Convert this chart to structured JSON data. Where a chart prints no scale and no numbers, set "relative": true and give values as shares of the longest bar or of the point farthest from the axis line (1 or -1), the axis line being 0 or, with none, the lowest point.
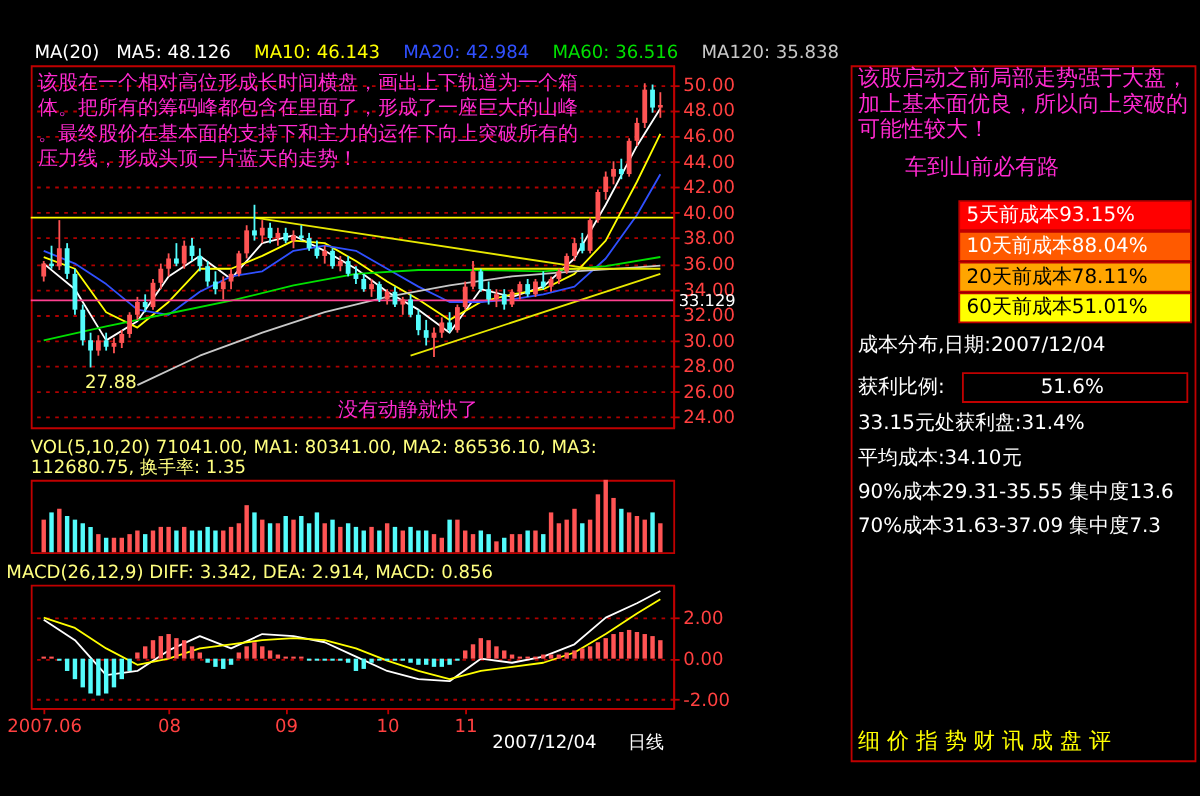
{
  "chart_data": [
    {
      "type": "candlestick",
      "title": "MA(20)",
      "legend": "top",
      "tick_labels": "y",
      "grid": "y",
      "categories": [
        null,
        null,
        null,
        null,
        null,
        null,
        null,
        null,
        null,
        null,
        null,
        null,
        null,
        null,
        null,
        null,
        null,
        null,
        null,
        null,
        null,
        null,
        null,
        null,
        null,
        null,
        null,
        null,
        null,
        null,
        null,
        null,
        null,
        null,
        null,
        null,
        null,
        null,
        null,
        null,
        null,
        null,
        null,
        null,
        null,
        null,
        null,
        null,
        null,
        null,
        null,
        null,
        null,
        null,
        null,
        null,
        null,
        null,
        null,
        null,
        null,
        null,
        null,
        null,
        null,
        null,
        null,
        null,
        null,
        null,
        null,
        null,
        null,
        null,
        null,
        null,
        null,
        null,
        null,
        null
      ],
      "ohlc": [
        [
          35.0,
          36.2,
          34.6,
          36.0
        ],
        [
          36.0,
          37.4,
          35.6,
          35.8
        ],
        [
          35.8,
          39.4,
          35.5,
          37.2
        ],
        [
          37.2,
          37.6,
          34.8,
          35.2
        ],
        [
          35.2,
          35.6,
          32.0,
          32.4
        ],
        [
          32.4,
          32.8,
          29.6,
          30.0
        ],
        [
          30.0,
          30.6,
          27.88,
          29.2
        ],
        [
          29.2,
          30.4,
          28.8,
          30.0
        ],
        [
          30.0,
          30.6,
          29.2,
          29.5
        ],
        [
          29.5,
          30.2,
          29.0,
          29.8
        ],
        [
          29.8,
          30.8,
          29.4,
          30.5
        ],
        [
          30.5,
          32.2,
          30.2,
          32.0
        ],
        [
          32.0,
          33.4,
          31.6,
          33.0
        ],
        [
          33.0,
          33.6,
          32.2,
          32.6
        ],
        [
          32.6,
          34.8,
          32.4,
          34.5
        ],
        [
          34.5,
          36.0,
          34.0,
          35.6
        ],
        [
          35.6,
          36.8,
          35.0,
          36.4
        ],
        [
          36.4,
          37.6,
          35.8,
          36.0
        ],
        [
          36.0,
          37.8,
          35.6,
          37.4
        ],
        [
          37.4,
          38.0,
          36.2,
          36.6
        ],
        [
          36.6,
          37.2,
          35.4,
          35.8
        ],
        [
          35.8,
          36.2,
          34.2,
          34.6
        ],
        [
          34.6,
          35.4,
          33.6,
          34.0
        ],
        [
          34.0,
          35.0,
          33.2,
          34.6
        ],
        [
          34.6,
          35.6,
          34.0,
          35.2
        ],
        [
          35.2,
          37.0,
          35.0,
          36.8
        ],
        [
          36.8,
          39.0,
          36.4,
          38.6
        ],
        [
          38.6,
          40.6,
          37.8,
          38.2
        ],
        [
          38.2,
          39.4,
          37.6,
          38.8
        ],
        [
          38.8,
          39.2,
          37.6,
          38.0
        ],
        [
          38.0,
          38.8,
          37.4,
          38.4
        ],
        [
          38.4,
          38.8,
          37.6,
          37.8
        ],
        [
          37.8,
          38.6,
          37.2,
          38.2
        ],
        [
          38.2,
          39.0,
          37.8,
          38.0
        ],
        [
          38.0,
          38.4,
          37.0,
          37.2
        ],
        [
          37.2,
          37.8,
          36.4,
          36.6
        ],
        [
          36.6,
          37.4,
          36.0,
          37.0
        ],
        [
          37.0,
          37.2,
          35.6,
          35.8
        ],
        [
          35.8,
          36.6,
          35.4,
          36.2
        ],
        [
          36.2,
          36.6,
          35.0,
          35.2
        ],
        [
          35.2,
          35.8,
          34.4,
          34.8
        ],
        [
          34.8,
          35.2,
          33.8,
          34.0
        ],
        [
          34.0,
          34.8,
          33.4,
          34.4
        ],
        [
          34.4,
          34.6,
          33.0,
          33.2
        ],
        [
          33.2,
          34.0,
          32.8,
          33.8
        ],
        [
          33.8,
          34.2,
          32.6,
          32.8
        ],
        [
          32.8,
          33.4,
          32.0,
          33.2
        ],
        [
          33.2,
          33.6,
          31.8,
          32.0
        ],
        [
          32.0,
          32.4,
          30.4,
          30.8
        ],
        [
          30.8,
          31.6,
          29.6,
          30.2
        ],
        [
          30.2,
          31.0,
          28.7,
          30.6
        ],
        [
          30.6,
          31.8,
          30.2,
          31.4
        ],
        [
          31.4,
          32.2,
          30.6,
          30.8
        ],
        [
          30.8,
          32.8,
          30.6,
          32.6
        ],
        [
          32.6,
          34.6,
          32.4,
          34.2
        ],
        [
          34.2,
          36.2,
          34.0,
          35.4
        ],
        [
          35.4,
          35.6,
          33.8,
          34.0
        ],
        [
          34.0,
          34.6,
          32.8,
          33.2
        ],
        [
          33.2,
          34.0,
          32.6,
          33.6
        ],
        [
          33.6,
          34.0,
          32.4,
          32.8
        ],
        [
          32.8,
          34.0,
          32.6,
          33.8
        ],
        [
          33.8,
          34.6,
          33.2,
          34.4
        ],
        [
          34.4,
          34.8,
          33.4,
          33.6
        ],
        [
          33.6,
          34.8,
          33.4,
          34.6
        ],
        [
          34.6,
          35.4,
          34.0,
          34.2
        ],
        [
          34.2,
          35.0,
          33.8,
          34.8
        ],
        [
          34.8,
          35.6,
          34.4,
          35.4
        ],
        [
          35.4,
          36.8,
          35.2,
          36.6
        ],
        [
          36.6,
          38.0,
          36.2,
          37.6
        ],
        [
          37.6,
          38.4,
          36.8,
          37.0
        ],
        [
          37.0,
          39.6,
          36.8,
          39.4
        ],
        [
          39.4,
          41.8,
          39.2,
          41.6
        ],
        [
          41.6,
          43.2,
          41.0,
          42.8
        ],
        [
          42.8,
          44.0,
          42.2,
          43.4
        ],
        [
          43.4,
          44.2,
          42.6,
          43.0
        ],
        [
          43.0,
          45.8,
          42.8,
          45.6
        ],
        [
          45.6,
          47.4,
          45.2,
          47.0
        ],
        [
          47.0,
          50.1,
          46.6,
          49.6
        ],
        [
          49.6,
          50.0,
          47.8,
          48.2
        ],
        [
          48.2,
          49.4,
          47.4,
          48.4
        ]
      ],
      "colors": [
        "#ff5454",
        "#54fcfc",
        "#ff5454",
        "#54fcfc",
        "#54fcfc",
        "#54fcfc",
        "#54fcfc",
        "#ff5454",
        "#54fcfc",
        "#ff5454",
        "#ff5454",
        "#ff5454",
        "#ff5454",
        "#54fcfc",
        "#ff5454",
        "#ff5454",
        "#ff5454",
        "#54fcfc",
        "#ff5454",
        "#54fcfc",
        "#54fcfc",
        "#54fcfc",
        "#54fcfc",
        "#ff5454",
        "#ff5454",
        "#ff5454",
        "#ff5454",
        "#54fcfc",
        "#ff5454",
        "#54fcfc",
        "#ff5454",
        "#54fcfc",
        "#ff5454",
        "#54fcfc",
        "#54fcfc",
        "#54fcfc",
        "#ff5454",
        "#54fcfc",
        "#ff5454",
        "#54fcfc",
        "#54fcfc",
        "#54fcfc",
        "#ff5454",
        "#54fcfc",
        "#ff5454",
        "#54fcfc",
        "#ff5454",
        "#54fcfc",
        "#54fcfc",
        "#54fcfc",
        "#ff5454",
        "#ff5454",
        "#54fcfc",
        "#ff5454",
        "#ff5454",
        "#ff5454",
        "#54fcfc",
        "#54fcfc",
        "#ff5454",
        "#54fcfc",
        "#ff5454",
        "#ff5454",
        "#54fcfc",
        "#ff5454",
        "#54fcfc",
        "#ff5454",
        "#ff5454",
        "#ff5454",
        "#ff5454",
        "#54fcfc",
        "#ff5454",
        "#ff5454",
        "#ff5454",
        "#ff5454",
        "#54fcfc",
        "#ff5454",
        "#ff5454",
        "#ff5454",
        "#54fcfc",
        "#ff5454"
      ],
      "ylim": [
        23.2,
        51.5
      ],
      "yticks": [
        {
          "value": 24,
          "label": "24.00"
        },
        {
          "value": 26,
          "label": "26.00"
        },
        {
          "value": 28,
          "label": "28.00"
        },
        {
          "value": 30,
          "label": "30.00"
        },
        {
          "value": 32,
          "label": "32.00"
        },
        {
          "value": 34,
          "label": "34.00"
        },
        {
          "value": 36,
          "label": "36.00"
        },
        {
          "value": 38,
          "label": "38.00"
        },
        {
          "value": 40,
          "label": "40.00"
        },
        {
          "value": 42,
          "label": "42.00"
        },
        {
          "value": 44,
          "label": "44.00"
        },
        {
          "value": 46,
          "label": "46.00"
        },
        {
          "value": 48,
          "label": "48.00"
        },
        {
          "value": 50,
          "label": "50.00"
        }
      ],
      "series": [
        {
          "name": "MA5: 48.126",
          "type": "line",
          "color": "#ffffff",
          "values": [
            36,
            null,
            null,
            null,
            34,
            null,
            null,
            null,
            30,
            null,
            null,
            null,
            31.5,
            null,
            null,
            null,
            35,
            null,
            null,
            null,
            36.6,
            null,
            null,
            null,
            34.8,
            null,
            null,
            null,
            37.6,
            null,
            null,
            null,
            38.2,
            null,
            null,
            null,
            37,
            null,
            null,
            null,
            35.6,
            null,
            null,
            null,
            33.8,
            null,
            null,
            null,
            32.4,
            null,
            null,
            null,
            30.6,
            null,
            null,
            null,
            34,
            null,
            null,
            null,
            33.4,
            null,
            null,
            null,
            34.2,
            null,
            null,
            null,
            36.4,
            null,
            null,
            null,
            40.6,
            null,
            null,
            null,
            45.2,
            null,
            null,
            48.126
          ]
        },
        {
          "name": "MA10: 46.143",
          "type": "line",
          "color": "#ffff00",
          "values": [
            36.5,
            null,
            null,
            null,
            35.6,
            null,
            null,
            null,
            32.2,
            null,
            null,
            null,
            31,
            null,
            null,
            null,
            33,
            null,
            null,
            null,
            35.6,
            null,
            null,
            null,
            35.6,
            null,
            null,
            null,
            36.6,
            null,
            null,
            null,
            37.8,
            null,
            null,
            null,
            37.6,
            null,
            null,
            null,
            36.2,
            null,
            null,
            null,
            34.6,
            null,
            null,
            null,
            33.2,
            null,
            null,
            null,
            31.6,
            null,
            null,
            null,
            33,
            null,
            null,
            null,
            33.6,
            null,
            null,
            null,
            34,
            null,
            null,
            null,
            35.2,
            null,
            null,
            null,
            37.8,
            null,
            null,
            null,
            42.4,
            null,
            null,
            46.143
          ]
        },
        {
          "name": "MA20: 42.984",
          "type": "line",
          "color": "#3050ff",
          "values": [
            37,
            null,
            null,
            null,
            36,
            null,
            null,
            null,
            34.4,
            null,
            null,
            null,
            32.4,
            null,
            null,
            null,
            32,
            null,
            null,
            null,
            33.8,
            null,
            null,
            null,
            35,
            null,
            null,
            null,
            35.4,
            null,
            null,
            null,
            37,
            null,
            null,
            null,
            37.4,
            null,
            null,
            null,
            37,
            null,
            null,
            null,
            35.6,
            null,
            null,
            null,
            34.2,
            null,
            null,
            null,
            33,
            null,
            null,
            null,
            33,
            null,
            null,
            null,
            33.2,
            null,
            null,
            null,
            33.6,
            null,
            null,
            null,
            34.2,
            null,
            null,
            null,
            36.4,
            null,
            null,
            null,
            39.8,
            null,
            null,
            42.984
          ]
        },
        {
          "name": "MA60: 36.516",
          "type": "line",
          "color": "#00e000",
          "values": [
            30.0,
            null,
            null,
            null,
            null,
            null,
            null,
            null,
            31.1,
            null,
            null,
            null,
            null,
            null,
            null,
            null,
            32.1,
            null,
            null,
            null,
            null,
            null,
            null,
            null,
            33.1,
            null,
            null,
            null,
            null,
            null,
            null,
            null,
            34.3,
            null,
            null,
            null,
            null,
            null,
            null,
            null,
            35.2,
            null,
            null,
            null,
            null,
            null,
            null,
            null,
            35.5,
            null,
            null,
            null,
            null,
            null,
            null,
            null,
            35.5,
            null,
            null,
            null,
            null,
            null,
            null,
            null,
            35.4,
            null,
            null,
            null,
            null,
            null,
            null,
            null,
            35.8,
            null,
            null,
            null,
            null,
            null,
            null,
            36.516
          ]
        },
        {
          "name": "MA120: 35.838",
          "type": "line",
          "color": "#c8c8c8",
          "values": [
            null,
            null,
            null,
            null,
            null,
            null,
            null,
            null,
            null,
            null,
            null,
            null,
            26.5,
            null,
            null,
            null,
            null,
            null,
            null,
            null,
            28.8,
            null,
            null,
            null,
            null,
            null,
            null,
            null,
            30.6,
            null,
            null,
            null,
            null,
            null,
            null,
            null,
            32.2,
            null,
            null,
            null,
            null,
            null,
            null,
            null,
            33.4,
            null,
            null,
            null,
            null,
            null,
            null,
            null,
            34.3,
            null,
            null,
            null,
            null,
            null,
            null,
            null,
            35.0,
            null,
            null,
            null,
            null,
            null,
            null,
            null,
            35.4,
            null,
            null,
            null,
            null,
            null,
            null,
            null,
            35.7,
            null,
            null,
            35.838
          ]
        },
        {
          "type": "line",
          "color": "#e8e800",
          "values": [
            null,
            null,
            null,
            null,
            null,
            null,
            null,
            null,
            null,
            null,
            null,
            null,
            null,
            null,
            null,
            null,
            null,
            null,
            null,
            null,
            null,
            null,
            null,
            null,
            null,
            null,
            null,
            39.6,
            null,
            null,
            null,
            null,
            null,
            null,
            null,
            null,
            null,
            null,
            null,
            null,
            null,
            null,
            null,
            null,
            null,
            null,
            null,
            null,
            null,
            null,
            null,
            null,
            null,
            null,
            null,
            null,
            null,
            null,
            null,
            null,
            null,
            null,
            null,
            null,
            null,
            null,
            null,
            null,
            null,
            null,
            35.6,
            null,
            null,
            null,
            null,
            null,
            null,
            null,
            null,
            null
          ]
        },
        {
          "type": "line",
          "color": "#e8e800",
          "values": [
            null,
            null,
            null,
            null,
            null,
            null,
            null,
            null,
            null,
            null,
            null,
            null,
            null,
            null,
            null,
            null,
            null,
            null,
            null,
            null,
            null,
            null,
            null,
            null,
            null,
            null,
            null,
            null,
            null,
            null,
            null,
            null,
            null,
            null,
            null,
            null,
            null,
            null,
            null,
            null,
            null,
            null,
            null,
            null,
            null,
            null,
            null,
            28.8,
            null,
            null,
            null,
            null,
            null,
            null,
            null,
            null,
            null,
            null,
            null,
            null,
            null,
            null,
            null,
            null,
            null,
            null,
            null,
            null,
            null,
            null,
            null,
            null,
            null,
            null,
            null,
            null,
            null,
            null,
            null,
            35.2
          ]
        },
        {
          "type": "line",
          "color": "#e8e800",
          "values": [
            null,
            null,
            null,
            null,
            null,
            null,
            null,
            null,
            null,
            null,
            null,
            null,
            null,
            null,
            null,
            null,
            null,
            null,
            null,
            null,
            null,
            null,
            null,
            null,
            null,
            null,
            null,
            null,
            null,
            null,
            null,
            null,
            null,
            null,
            null,
            null,
            null,
            null,
            null,
            null,
            null,
            null,
            null,
            null,
            null,
            null,
            null,
            null,
            null,
            null,
            null,
            null,
            null,
            null,
            null,
            35.6,
            null,
            null,
            null,
            null,
            null,
            null,
            null,
            null,
            null,
            null,
            null,
            null,
            null,
            null,
            null,
            null,
            null,
            null,
            null,
            null,
            null,
            null,
            null,
            35.6
          ]
        }
      ],
      "ref_lines": [
        {
          "axis": "y",
          "value": 39.6,
          "color": "#ffff00"
        },
        {
          "axis": "y",
          "value": 33.129,
          "label": "33.129",
          "color": "#ff4090"
        }
      ],
      "annotations": [
        "该股在一个相对高位形成长时间横盘，画出上下轨道为一个箱体。把所有的筹码峰都包含在里面了，形成了一座巨大的山峰。最终股价在基本面的支持下和主力的运作下向上突破所有的压力线，形成头顶一片蓝天的走势！",
        "没有动静就快了",
        "27.88"
      ]
    },
    {
      "type": "bar",
      "relative": true,
      "title": "VOL(5,10,20) 71041.00, MA1: 80341.00, MA2: 86536.10, MA3: 112680.75, 换手率: 1.35",
      "categories": [
        null,
        null,
        null,
        null,
        null,
        null,
        null,
        null,
        null,
        null,
        null,
        null,
        null,
        null,
        null,
        null,
        null,
        null,
        null,
        null,
        null,
        null,
        null,
        null,
        null,
        null,
        null,
        null,
        null,
        null,
        null,
        null,
        null,
        null,
        null,
        null,
        null,
        null,
        null,
        null,
        null,
        null,
        null,
        null,
        null,
        null,
        null,
        null,
        null,
        null,
        null,
        null,
        null,
        null,
        null,
        null,
        null,
        null,
        null,
        null,
        null,
        null,
        null,
        null,
        null,
        null,
        null,
        null,
        null,
        null,
        null,
        null,
        null,
        null,
        null,
        null,
        null,
        null,
        null,
        null
      ],
      "values": [
        0.45,
        0.55,
        0.6,
        0.5,
        0.45,
        0.4,
        0.35,
        0.25,
        0.2,
        0.2,
        0.2,
        0.25,
        0.3,
        0.25,
        0.3,
        0.35,
        0.35,
        0.3,
        0.35,
        0.3,
        0.3,
        0.35,
        0.3,
        0.3,
        0.35,
        0.4,
        0.65,
        0.55,
        0.45,
        0.4,
        0.4,
        0.5,
        0.45,
        0.5,
        0.4,
        0.55,
        0.4,
        0.45,
        0.35,
        0.4,
        0.35,
        0.3,
        0.35,
        0.3,
        0.4,
        0.35,
        0.3,
        0.35,
        0.3,
        0.3,
        0.25,
        0.2,
        0.45,
        0.45,
        0.3,
        0.25,
        0.3,
        0.25,
        0.15,
        0.2,
        0.25,
        0.25,
        0.3,
        0.3,
        0.25,
        0.55,
        0.4,
        0.45,
        0.6,
        0.4,
        0.45,
        0.8,
        1.0,
        0.75,
        0.6,
        0.55,
        0.5,
        0.45,
        0.55,
        0.4
      ],
      "colors": [
        "#ff5454",
        "#54fcfc",
        "#ff5454",
        "#54fcfc",
        "#54fcfc",
        "#54fcfc",
        "#54fcfc",
        "#ff5454",
        "#54fcfc",
        "#ff5454",
        "#ff5454",
        "#ff5454",
        "#ff5454",
        "#54fcfc",
        "#ff5454",
        "#ff5454",
        "#ff5454",
        "#54fcfc",
        "#ff5454",
        "#54fcfc",
        "#54fcfc",
        "#54fcfc",
        "#54fcfc",
        "#ff5454",
        "#ff5454",
        "#ff5454",
        "#ff5454",
        "#54fcfc",
        "#ff5454",
        "#54fcfc",
        "#ff5454",
        "#54fcfc",
        "#ff5454",
        "#54fcfc",
        "#54fcfc",
        "#54fcfc",
        "#ff5454",
        "#54fcfc",
        "#ff5454",
        "#54fcfc",
        "#54fcfc",
        "#54fcfc",
        "#ff5454",
        "#54fcfc",
        "#ff5454",
        "#54fcfc",
        "#ff5454",
        "#54fcfc",
        "#54fcfc",
        "#54fcfc",
        "#ff5454",
        "#ff5454",
        "#54fcfc",
        "#ff5454",
        "#ff5454",
        "#ff5454",
        "#54fcfc",
        "#54fcfc",
        "#ff5454",
        "#54fcfc",
        "#ff5454",
        "#ff5454",
        "#54fcfc",
        "#ff5454",
        "#54fcfc",
        "#ff5454",
        "#ff5454",
        "#ff5454",
        "#ff5454",
        "#54fcfc",
        "#ff5454",
        "#ff5454",
        "#ff5454",
        "#ff5454",
        "#54fcfc",
        "#ff5454",
        "#ff5454",
        "#ff5454",
        "#54fcfc",
        "#ff5454"
      ]
    },
    {
      "type": "bar",
      "title": "MACD(26,12,9) DIFF: 3.342, DEA: 2.914, MACD: 0.856",
      "grid": "y",
      "categories": [
        "2007.06",
        null,
        null,
        null,
        null,
        null,
        null,
        null,
        null,
        null,
        null,
        null,
        null,
        null,
        null,
        null,
        "08",
        null,
        null,
        null,
        null,
        null,
        null,
        null,
        null,
        null,
        null,
        null,
        null,
        null,
        null,
        "09",
        null,
        null,
        null,
        null,
        null,
        null,
        null,
        null,
        null,
        null,
        null,
        null,
        "10",
        null,
        null,
        null,
        null,
        null,
        null,
        null,
        null,
        null,
        "11",
        null,
        null,
        null,
        null,
        null,
        null,
        null,
        null,
        null,
        null,
        null,
        null,
        null,
        null,
        null,
        null,
        null,
        null,
        null,
        null,
        null,
        null,
        null,
        null,
        null
      ],
      "values": [
        0.1,
        0.1,
        -0.1,
        -0.6,
        -1.0,
        -1.4,
        -1.7,
        -1.8,
        -1.7,
        -1.4,
        -1.0,
        -0.6,
        0.3,
        0.6,
        0.9,
        1.1,
        1.2,
        1.0,
        0.9,
        0.6,
        0.3,
        -0.2,
        -0.4,
        -0.5,
        -0.3,
        0.3,
        0.6,
        0.8,
        0.6,
        0.4,
        0.2,
        0.1,
        0.1,
        0.1,
        -0.1,
        -0.1,
        -0.1,
        -0.1,
        -0.1,
        -0.2,
        -0.6,
        -0.5,
        -0.2,
        -0.1,
        -0.1,
        -0.1,
        -0.1,
        -0.2,
        -0.3,
        -0.3,
        -0.4,
        -0.4,
        -0.3,
        -0.1,
        0.4,
        0.7,
        1.0,
        0.9,
        0.6,
        0.4,
        0.2,
        0.1,
        0.1,
        0.1,
        0.2,
        0.2,
        0.2,
        0.3,
        0.4,
        0.5,
        0.6,
        0.8,
        1.0,
        1.2,
        1.3,
        1.4,
        1.3,
        1.2,
        1.1,
        0.9
      ],
      "colors": [
        "#ff5454",
        "#ff5454",
        "#54fcfc",
        "#54fcfc",
        "#54fcfc",
        "#54fcfc",
        "#54fcfc",
        "#54fcfc",
        "#54fcfc",
        "#54fcfc",
        "#54fcfc",
        "#54fcfc",
        "#ff5454",
        "#ff5454",
        "#ff5454",
        "#ff5454",
        "#ff5454",
        "#ff5454",
        "#ff5454",
        "#ff5454",
        "#ff5454",
        "#54fcfc",
        "#54fcfc",
        "#54fcfc",
        "#54fcfc",
        "#ff5454",
        "#ff5454",
        "#ff5454",
        "#ff5454",
        "#ff5454",
        "#ff5454",
        "#ff5454",
        "#ff5454",
        "#ff5454",
        "#54fcfc",
        "#54fcfc",
        "#54fcfc",
        "#54fcfc",
        "#54fcfc",
        "#54fcfc",
        "#54fcfc",
        "#54fcfc",
        "#54fcfc",
        "#54fcfc",
        "#54fcfc",
        "#54fcfc",
        "#54fcfc",
        "#54fcfc",
        "#54fcfc",
        "#54fcfc",
        "#54fcfc",
        "#54fcfc",
        "#54fcfc",
        "#54fcfc",
        "#ff5454",
        "#ff5454",
        "#ff5454",
        "#ff5454",
        "#ff5454",
        "#ff5454",
        "#ff5454",
        "#ff5454",
        "#ff5454",
        "#ff5454",
        "#ff5454",
        "#ff5454",
        "#ff5454",
        "#ff5454",
        "#ff5454",
        "#ff5454",
        "#ff5454",
        "#ff5454",
        "#ff5454",
        "#ff5454",
        "#ff5454",
        "#ff5454",
        "#ff5454",
        "#ff5454",
        "#ff5454",
        "#ff5454"
      ],
      "ylim": [
        -2.4,
        3.6
      ],
      "yticks": [
        {
          "value": -2,
          "label": "-2.00"
        },
        {
          "value": 0,
          "label": "0.00"
        },
        {
          "value": 2,
          "label": "2.00"
        }
      ],
      "series": [
        {
          "type": "line",
          "color": "#ffffff",
          "values": [
            1.9,
            null,
            null,
            null,
            0.9,
            null,
            null,
            null,
            -0.8,
            null,
            null,
            null,
            -0.6,
            null,
            null,
            null,
            0.4,
            null,
            null,
            null,
            1.1,
            null,
            null,
            null,
            0.5,
            null,
            null,
            null,
            1.2,
            null,
            null,
            null,
            1.1,
            null,
            null,
            null,
            0.8,
            null,
            null,
            null,
            0.1,
            null,
            null,
            null,
            -0.6,
            null,
            null,
            null,
            -1.0,
            null,
            null,
            null,
            -1.1,
            null,
            null,
            null,
            0.0,
            null,
            null,
            null,
            -0.2,
            null,
            null,
            null,
            0.1,
            null,
            null,
            null,
            0.7,
            null,
            null,
            null,
            2.0,
            null,
            null,
            null,
            2.7,
            null,
            null,
            3.3
          ]
        },
        {
          "type": "line",
          "color": "#ffff00",
          "values": [
            2.0,
            null,
            null,
            null,
            1.5,
            null,
            null,
            null,
            0.5,
            null,
            null,
            null,
            -0.3,
            null,
            null,
            null,
            0.0,
            null,
            null,
            null,
            0.5,
            null,
            null,
            null,
            0.7,
            null,
            null,
            null,
            0.9,
            null,
            null,
            null,
            1.0,
            null,
            null,
            null,
            0.9,
            null,
            null,
            null,
            0.5,
            null,
            null,
            null,
            -0.1,
            null,
            null,
            null,
            -0.6,
            null,
            null,
            null,
            -1.0,
            null,
            null,
            null,
            -0.6,
            null,
            null,
            null,
            -0.4,
            null,
            null,
            null,
            -0.2,
            null,
            null,
            null,
            0.3,
            null,
            null,
            null,
            1.2,
            null,
            null,
            null,
            2.2,
            null,
            null,
            2.9
          ]
        }
      ],
      "annotations": [
        "2007/12/04",
        "日线"
      ]
    },
    {
      "type": "other",
      "annotations": [
        "该股启动之前局部走势强于大盘，加上基本面优良，所以向上突破的可能性较大！",
        "车到山前必有路",
        "5天前成本93.15%",
        "10天前成本88.04%",
        "20天前成本78.11%",
        "60天前成本51.01%",
        "成本分布,日期:2007/12/04",
        "获利比例:",
        "51.6%",
        "33.15元处获利盘:31.4%",
        "平均成本:34.10元",
        "90%成本29.31-35.55 集中度13.6",
        "70%成本31.63-37.09 集中度7.3",
        "细 价 指 势 财 讯 成 盘 评"
      ]
    }
  ]
}
